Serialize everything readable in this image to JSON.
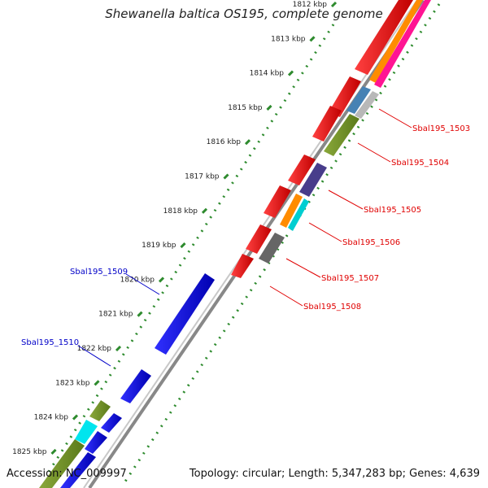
{
  "title": "Shewanella baltica OS195, complete genome",
  "accession": "Accession: NC_009997",
  "summary": "Topology: circular; Length: 5,347,283 bp; Genes: 4,639",
  "colors": {
    "backbone": "#888888",
    "tick_dots": "#2e8b2e",
    "label_red": "#e00000",
    "label_blue": "#0000c8"
  },
  "ticks": [
    "1812 kbp",
    "1813 kbp",
    "1814 kbp",
    "1815 kbp",
    "1816 kbp",
    "1817 kbp",
    "1818 kbp",
    "1819 kbp",
    "1820 kbp",
    "1821 kbp",
    "1822 kbp",
    "1823 kbp",
    "1824 kbp",
    "1825 kbp"
  ],
  "gene_labels_right": [
    "Sbal195_1503",
    "Sbal195_1504",
    "Sbal195_1505",
    "Sbal195_1506",
    "Sbal195_1507",
    "Sbal195_1508"
  ],
  "gene_labels_left": [
    "Sbal195_1509",
    "Sbal195_1510"
  ]
}
